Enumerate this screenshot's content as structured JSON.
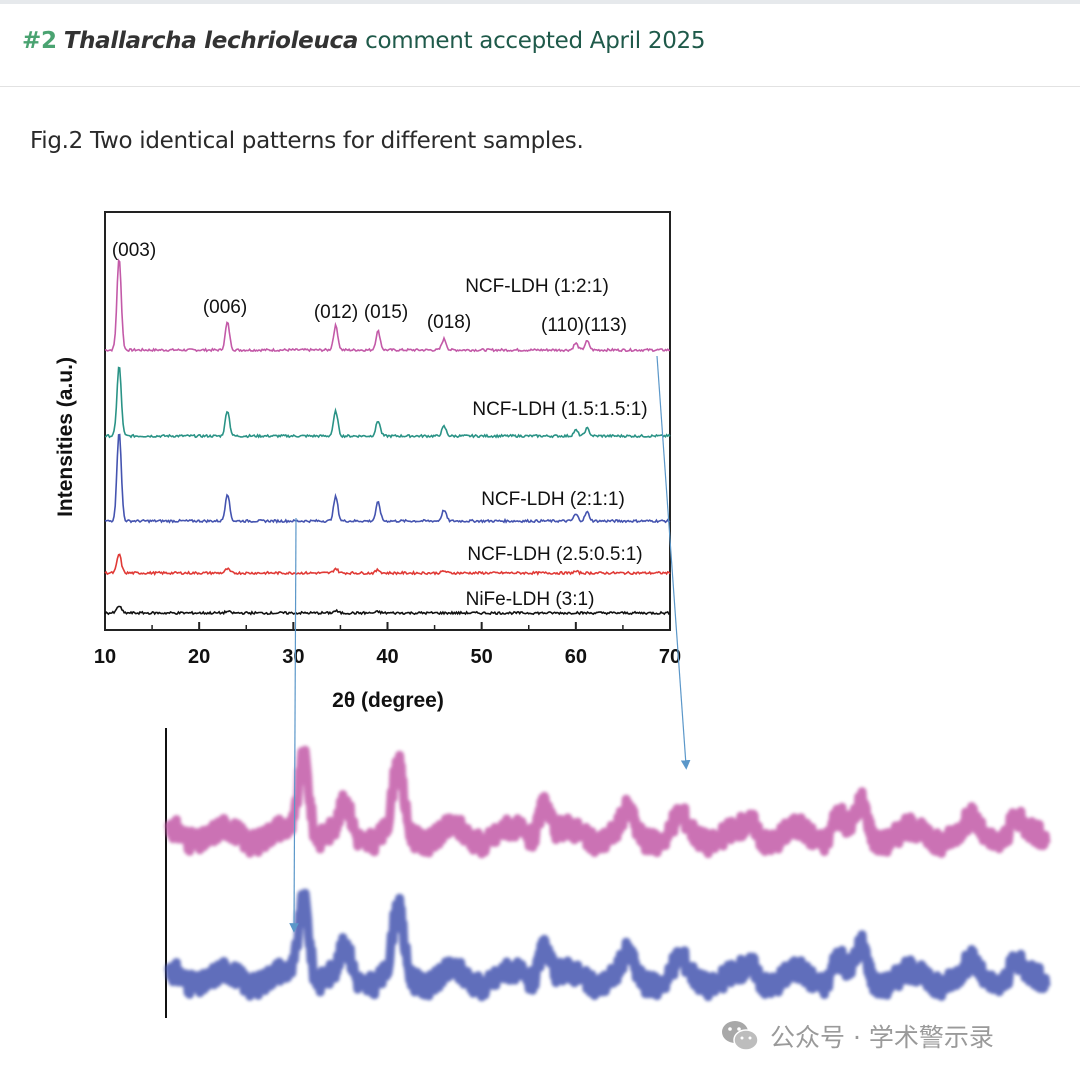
{
  "header": {
    "number": "#2",
    "species": "Thallarcha lechrioleuca",
    "status": "comment accepted April 2025"
  },
  "caption": "Fig.2 Two identical patterns for different samples.",
  "watermark": {
    "text": "公众号 · 学术警示录",
    "icon": "wechat-icon"
  },
  "chart_data": {
    "type": "line",
    "xlabel": "2θ (degree)",
    "ylabel": "Intensities (a.u.)",
    "xlim": [
      10,
      70
    ],
    "xticks": [
      10,
      20,
      30,
      40,
      50,
      60,
      70
    ],
    "grid": false,
    "peak_labels": [
      {
        "text": "(003)",
        "x": 11.5
      },
      {
        "text": "(006)",
        "x": 23
      },
      {
        "text": "(012)",
        "x": 34.5
      },
      {
        "text": "(015)",
        "x": 39
      },
      {
        "text": "(018)",
        "x": 46
      },
      {
        "text": "(110)(113)",
        "x": 61
      }
    ],
    "series": [
      {
        "name": "NCF-LDH (1:2:1)",
        "color": "#c35aa8",
        "offset": 0.0,
        "peaks": [
          [
            11.5,
            0.84
          ],
          [
            23,
            0.25
          ],
          [
            34.5,
            0.22
          ],
          [
            39,
            0.17
          ],
          [
            46,
            0.1
          ],
          [
            60,
            0.06
          ],
          [
            61.2,
            0.08
          ]
        ]
      },
      {
        "name": "NCF-LDH (1.5:1.5:1)",
        "color": "#2a9386",
        "offset": 0.0,
        "peaks": [
          [
            11.5,
            0.74
          ],
          [
            23,
            0.27
          ],
          [
            34.5,
            0.26
          ],
          [
            39,
            0.16
          ],
          [
            46,
            0.1
          ],
          [
            60,
            0.06
          ],
          [
            61.2,
            0.08
          ]
        ]
      },
      {
        "name": "NCF-LDH (2:1:1)",
        "color": "#4554b0",
        "offset": 0.0,
        "peaks": [
          [
            11.5,
            0.82
          ],
          [
            23,
            0.25
          ],
          [
            34.5,
            0.22
          ],
          [
            39,
            0.17
          ],
          [
            46,
            0.1
          ],
          [
            60,
            0.06
          ],
          [
            61.2,
            0.08
          ]
        ]
      },
      {
        "name": "NCF-LDH (2.5:0.5:1)",
        "color": "#e03a36",
        "offset": 0.0,
        "peaks": [
          [
            11.5,
            0.38
          ],
          [
            23,
            0.08
          ],
          [
            34.5,
            0.09
          ],
          [
            39,
            0.06
          ],
          [
            46,
            0.04
          ],
          [
            60,
            0.03
          ]
        ]
      },
      {
        "name": "NiFe-LDH (3:1)",
        "color": "#111111",
        "offset": 0.0,
        "peaks": [
          [
            11.5,
            0.24
          ],
          [
            23,
            0.05
          ],
          [
            34.5,
            0.07
          ],
          [
            39,
            0.04
          ],
          [
            60,
            0.02
          ]
        ]
      }
    ],
    "zoom_inset": {
      "description_series": [
        "NCF-LDH (1:2:1)",
        "NCF-LDH (2:1:1)"
      ],
      "x_range": [
        28,
        70
      ]
    }
  }
}
